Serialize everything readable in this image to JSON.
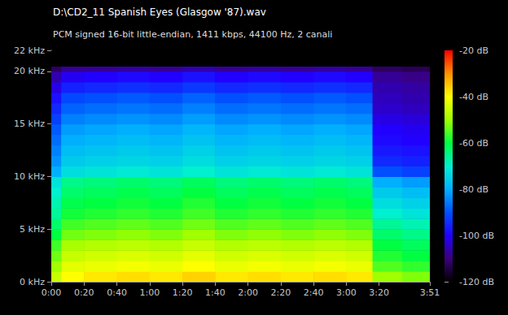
{
  "chart_data": {
    "type": "heatmap",
    "title": "D:\\CD2_11 Spanish Eyes (Glasgow '87).wav",
    "subtitle": "PCM signed 16-bit little-endian, 1411 kbps, 44100 Hz, 2 canali",
    "grid": false,
    "xlim": [
      0,
      231
    ],
    "xticks": [
      {
        "value": 0,
        "label": "0:00"
      },
      {
        "value": 20,
        "label": "0:20"
      },
      {
        "value": 40,
        "label": "0:40"
      },
      {
        "value": 60,
        "label": "1:00"
      },
      {
        "value": 80,
        "label": "1:20"
      },
      {
        "value": 100,
        "label": "1:40"
      },
      {
        "value": 120,
        "label": "2:00"
      },
      {
        "value": 140,
        "label": "2:20"
      },
      {
        "value": 160,
        "label": "2:40"
      },
      {
        "value": 180,
        "label": "3:00"
      },
      {
        "value": 200,
        "label": "3:20"
      },
      {
        "value": 231,
        "label": "3:51"
      }
    ],
    "ylim": [
      0,
      22
    ],
    "yticks": [
      {
        "value": 0,
        "label": "0 kHz"
      },
      {
        "value": 5,
        "label": "5 kHz"
      },
      {
        "value": 10,
        "label": "10 kHz"
      },
      {
        "value": 15,
        "label": "15 kHz"
      },
      {
        "value": 20,
        "label": "20 kHz"
      },
      {
        "value": 22,
        "label": "22 kHz"
      }
    ],
    "x_bins": [
      0,
      6,
      20,
      40,
      60,
      80,
      100,
      120,
      140,
      160,
      180,
      196,
      214,
      231
    ],
    "y_bins": [
      0,
      1,
      2,
      3,
      4,
      5,
      6,
      7,
      8,
      9,
      10,
      11,
      12,
      13,
      14,
      15,
      16,
      17,
      18,
      19,
      20,
      20.5,
      22
    ],
    "cells": [
      [
        -46,
        -40,
        -38,
        -37,
        -38,
        -36,
        -38,
        -37,
        -38,
        -37,
        -38,
        -50,
        -52
      ],
      [
        -50,
        -43,
        -42,
        -41,
        -42,
        -40,
        -42,
        -41,
        -42,
        -41,
        -42,
        -55,
        -57
      ],
      [
        -53,
        -46,
        -45,
        -44,
        -45,
        -43,
        -45,
        -44,
        -45,
        -44,
        -45,
        -58,
        -60
      ],
      [
        -56,
        -49,
        -48,
        -47,
        -48,
        -46,
        -48,
        -47,
        -48,
        -47,
        -48,
        -60,
        -62
      ],
      [
        -60,
        -53,
        -52,
        -51,
        -52,
        -50,
        -52,
        -51,
        -52,
        -51,
        -52,
        -63,
        -65
      ],
      [
        -63,
        -56,
        -55,
        -54,
        -55,
        -53,
        -55,
        -54,
        -55,
        -54,
        -55,
        -66,
        -68
      ],
      [
        -66,
        -59,
        -58,
        -57,
        -58,
        -56,
        -58,
        -57,
        -58,
        -57,
        -58,
        -70,
        -72
      ],
      [
        -68,
        -61,
        -60,
        -59,
        -60,
        -58,
        -60,
        -59,
        -60,
        -59,
        -60,
        -73,
        -75
      ],
      [
        -70,
        -63,
        -62,
        -61,
        -62,
        -60,
        -62,
        -61,
        -62,
        -61,
        -62,
        -76,
        -78
      ],
      [
        -72,
        -65,
        -64,
        -63,
        -64,
        -62,
        -64,
        -63,
        -64,
        -63,
        -64,
        -80,
        -82
      ],
      [
        -80,
        -73,
        -72,
        -71,
        -72,
        -70,
        -72,
        -71,
        -72,
        -71,
        -72,
        -90,
        -92
      ],
      [
        -83,
        -76,
        -75,
        -74,
        -75,
        -73,
        -75,
        -74,
        -75,
        -74,
        -75,
        -95,
        -96
      ],
      [
        -85,
        -78,
        -77,
        -76,
        -77,
        -75,
        -77,
        -76,
        -77,
        -76,
        -77,
        -97,
        -98
      ],
      [
        -87,
        -80,
        -79,
        -78,
        -79,
        -77,
        -79,
        -78,
        -79,
        -78,
        -79,
        -99,
        -100
      ],
      [
        -89,
        -82,
        -81,
        -80,
        -81,
        -79,
        -81,
        -80,
        -81,
        -80,
        -81,
        -100,
        -101
      ],
      [
        -92,
        -85,
        -84,
        -83,
        -84,
        -82,
        -84,
        -83,
        -84,
        -83,
        -84,
        -102,
        -103
      ],
      [
        -95,
        -88,
        -87,
        -86,
        -87,
        -85,
        -87,
        -86,
        -87,
        -86,
        -87,
        -104,
        -105
      ],
      [
        -98,
        -91,
        -90,
        -89,
        -90,
        -88,
        -90,
        -89,
        -90,
        -89,
        -90,
        -105,
        -106
      ],
      [
        -102,
        -96,
        -95,
        -94,
        -95,
        -93,
        -95,
        -94,
        -95,
        -94,
        -95,
        -106,
        -107
      ],
      [
        -106,
        -101,
        -100,
        -99,
        -100,
        -98,
        -100,
        -99,
        -100,
        -99,
        -100,
        -108,
        -109
      ],
      [
        -112,
        -108,
        -108,
        -107,
        -108,
        -106,
        -108,
        -107,
        -108,
        -107,
        -108,
        -112,
        -113
      ],
      [
        -120,
        -120,
        -120,
        -120,
        -120,
        -120,
        -120,
        -120,
        -120,
        -120,
        -120,
        -120,
        -120
      ]
    ],
    "colorbar": {
      "range": [
        -120,
        -20
      ],
      "ticks": [
        {
          "value": -20,
          "label": "-20 dB"
        },
        {
          "value": -40,
          "label": "-40 dB"
        },
        {
          "value": -60,
          "label": "-60 dB"
        },
        {
          "value": -80,
          "label": "-80 dB"
        },
        {
          "value": -100,
          "label": "-100 dB"
        },
        {
          "value": -120,
          "label": "-120 dB"
        }
      ]
    }
  }
}
